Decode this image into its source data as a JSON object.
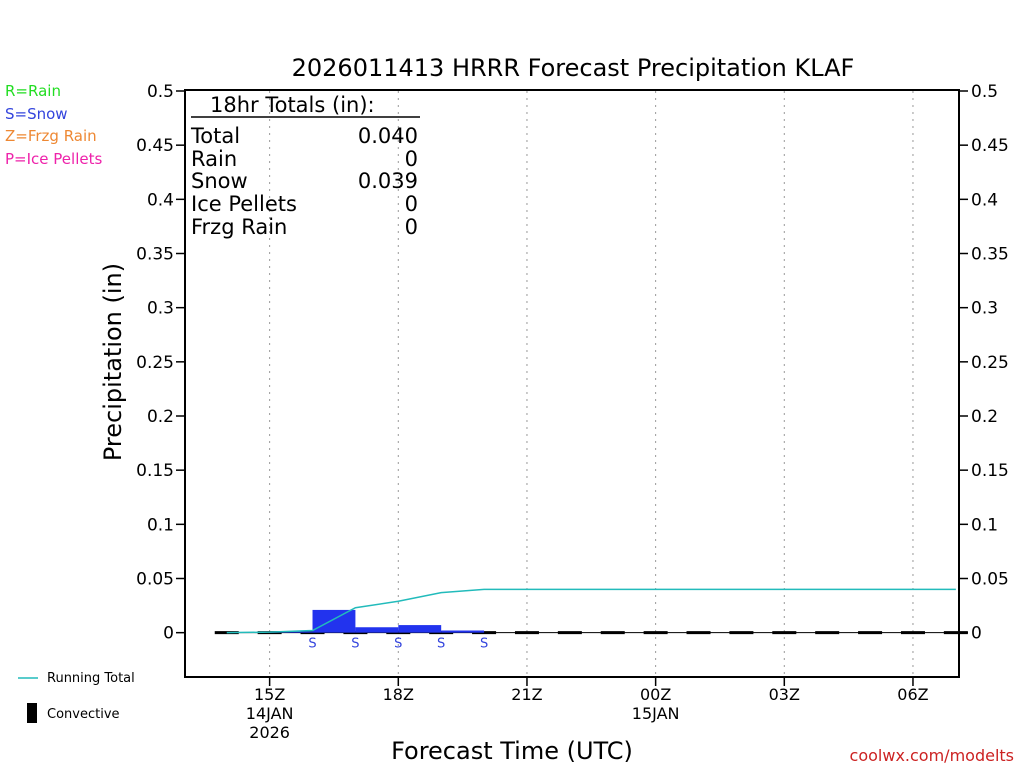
{
  "chart_data": {
    "type": "bar",
    "title": "2026011413 HRRR Forecast Precipitation KLAF",
    "xlabel": "Forecast Time (UTC)",
    "ylabel": "Precipitation (in)",
    "ylim": [
      -0.04,
      0.5
    ],
    "xlim_hours": [
      -1.95,
      16.05
    ],
    "y_ticks": [
      0,
      0.05,
      0.1,
      0.15,
      0.2,
      0.25,
      0.3,
      0.35,
      0.4,
      0.45,
      0.5
    ],
    "y_tick_labels": [
      "0",
      "0.05",
      "0.1",
      "0.15",
      "0.2",
      "0.25",
      "0.3",
      "0.35",
      "0.4",
      "0.45",
      "0.5"
    ],
    "x_ticks": [
      {
        "hour": 0,
        "lines": [
          "15Z",
          "14JAN",
          "2026"
        ]
      },
      {
        "hour": 3,
        "lines": [
          "18Z"
        ]
      },
      {
        "hour": 6,
        "lines": [
          "21Z"
        ]
      },
      {
        "hour": 9,
        "lines": [
          "00Z",
          "15JAN"
        ]
      },
      {
        "hour": 12,
        "lines": [
          "03Z"
        ]
      },
      {
        "hour": 15,
        "lines": [
          "06Z"
        ]
      }
    ],
    "bars": [
      {
        "start": 0,
        "end": 1,
        "value": 0.001,
        "type": "S"
      },
      {
        "start": 1,
        "end": 2,
        "value": 0.021,
        "type": "S"
      },
      {
        "start": 2,
        "end": 3,
        "value": 0.005,
        "type": "S"
      },
      {
        "start": 3,
        "end": 4,
        "value": 0.007,
        "type": "S"
      },
      {
        "start": 4,
        "end": 5,
        "value": 0.002,
        "type": "S"
      }
    ],
    "running_total": {
      "name": "Running Total",
      "x": [
        -1,
        0,
        1,
        2,
        3,
        4,
        5,
        6,
        7,
        8,
        9,
        10,
        11,
        12,
        13,
        14,
        15,
        16
      ],
      "y": [
        0,
        0.0005,
        0.002,
        0.023,
        0.029,
        0.037,
        0.04,
        0.04,
        0.04,
        0.04,
        0.04,
        0.04,
        0.04,
        0.04,
        0.04,
        0.04,
        0.04,
        0.04
      ]
    },
    "convective_hours": [
      -1,
      0,
      1,
      2,
      3,
      4,
      5,
      6,
      7,
      8,
      9,
      10,
      11,
      12,
      13,
      14,
      15,
      16
    ]
  },
  "totals": {
    "header": "18hr Totals (in):",
    "rows": [
      {
        "label": "Total",
        "value": "0.040"
      },
      {
        "label": "Rain",
        "value": "0"
      },
      {
        "label": "Snow",
        "value": "0.039"
      },
      {
        "label": "Ice Pellets",
        "value": "0"
      },
      {
        "label": "Frzg Rain",
        "value": "0"
      }
    ]
  },
  "legend": {
    "types": [
      {
        "text": "R=Rain",
        "color": "#22dd22"
      },
      {
        "text": "S=Snow",
        "color": "#3344dd"
      },
      {
        "text": "Z=Frzg Rain",
        "color": "#ee8833"
      },
      {
        "text": "P=Ice Pellets",
        "color": "#ee22aa"
      }
    ],
    "running_total_label": "Running Total",
    "convective_label": "Convective"
  },
  "colors": {
    "bar": "#2233ee",
    "running_total": "#22bbbb",
    "axis": "#000000",
    "grid": "#999999",
    "snow_label": "#3344dd",
    "credit": "#cc2222"
  },
  "credit": "coolwx.com/modelts"
}
